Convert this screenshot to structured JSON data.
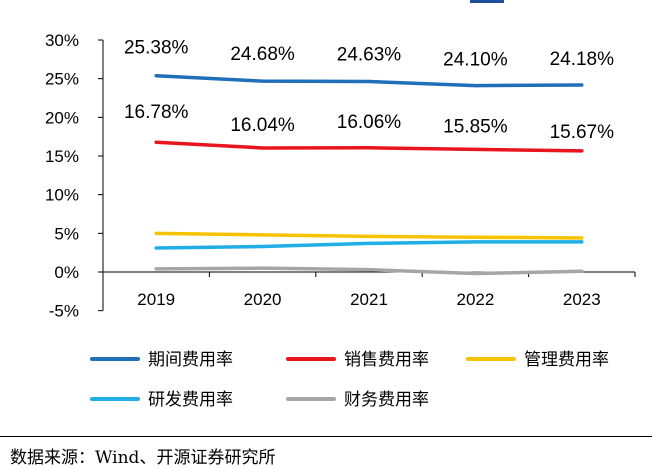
{
  "chart_data": {
    "type": "line",
    "categories": [
      "2019",
      "2020",
      "2021",
      "2022",
      "2023"
    ],
    "y_ticks": [
      "30%",
      "25%",
      "20%",
      "15%",
      "10%",
      "5%",
      "0%",
      "-5%"
    ],
    "ylim": [
      -5,
      30
    ],
    "grid": false,
    "legend_position": "bottom",
    "series": [
      {
        "name": "期间费用率",
        "color": "#1f6fb9",
        "values": [
          25.38,
          24.68,
          24.63,
          24.1,
          24.18
        ],
        "labels": [
          "25.38%",
          "24.68%",
          "24.63%",
          "24.10%",
          "24.18%"
        ]
      },
      {
        "name": "销售费用率",
        "color": "#e8141e",
        "values": [
          16.78,
          16.04,
          16.06,
          15.85,
          15.67
        ],
        "labels": [
          "16.78%",
          "16.04%",
          "16.06%",
          "15.85%",
          "15.67%"
        ]
      },
      {
        "name": "管理费用率",
        "color": "#f6c300",
        "values": [
          5.0,
          4.8,
          4.6,
          4.5,
          4.4
        ]
      },
      {
        "name": "研发费用率",
        "color": "#21aee6",
        "values": [
          3.1,
          3.3,
          3.7,
          3.9,
          3.9
        ]
      },
      {
        "name": "财务费用率",
        "color": "#a6a6a6",
        "values": [
          0.4,
          0.5,
          0.3,
          -0.2,
          0.1
        ]
      }
    ]
  },
  "source": "数据来源：Wind、开源证券研究所"
}
